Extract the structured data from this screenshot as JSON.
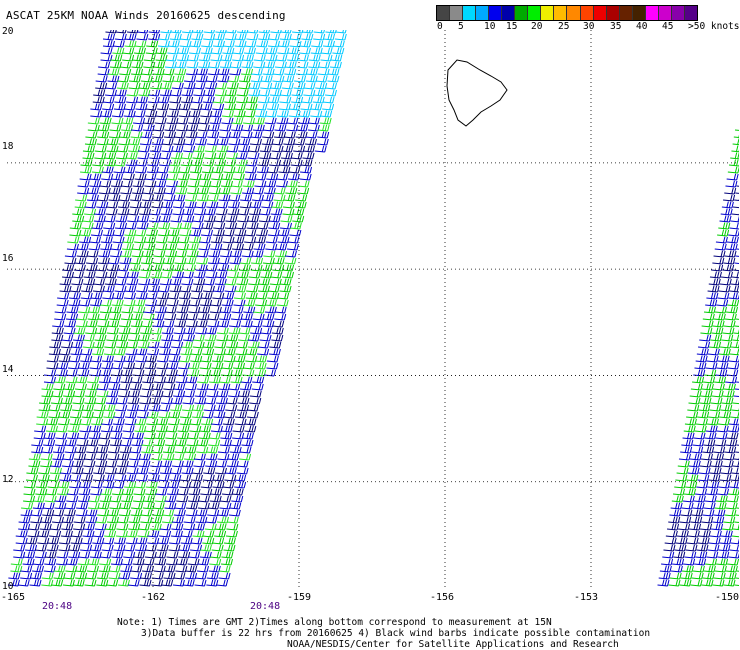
{
  "title": "ASCAT 25KM NOAA Winds 20160625 descending",
  "colorbar": {
    "segments": [
      "#454545",
      "#8a8a8a",
      "#00d8ff",
      "#00aaff",
      "#0000ee",
      "#0000aa",
      "#00aa00",
      "#00ee00",
      "#eeee00",
      "#ffbb00",
      "#ff8800",
      "#ff4400",
      "#ee0000",
      "#aa0000",
      "#662200",
      "#442200",
      "#ff00ff",
      "#cc00cc",
      "#8800aa",
      "#550088"
    ],
    "labels": [
      "0",
      "5",
      "10",
      "15",
      "20",
      "25",
      "30",
      "35",
      "40",
      "45"
    ],
    "unit": ">50 knots"
  },
  "lat_labels": [
    "20",
    "18",
    "16",
    "14",
    "12",
    "10"
  ],
  "lon_labels": [
    "-165",
    "-162",
    "-159",
    "-156",
    "-153",
    "-150"
  ],
  "times": [
    "20:48",
    "20:48"
  ],
  "notes": {
    "line1": "Note: 1) Times are GMT 2)Times along bottom correspond to measurement at 15N",
    "line2": "3)Data buffer is 22 hrs from 20160625 4) Black wind barbs indicate possible contamination",
    "line3": "NOAA/NESDIS/Center for Satellite Applications and Research"
  },
  "map": {
    "lat_range": [
      10,
      20.5
    ],
    "lon_range": [
      -165,
      -150
    ],
    "grid": "dotted",
    "wind_colors": {
      "slow_cyan": "#00c8ff",
      "medium_blue": "#0000cc",
      "navy": "#00007a",
      "green": "#00cc00",
      "bright_green": "#22e022"
    },
    "island": "Hawaii (Big Island) outline, top-right"
  }
}
